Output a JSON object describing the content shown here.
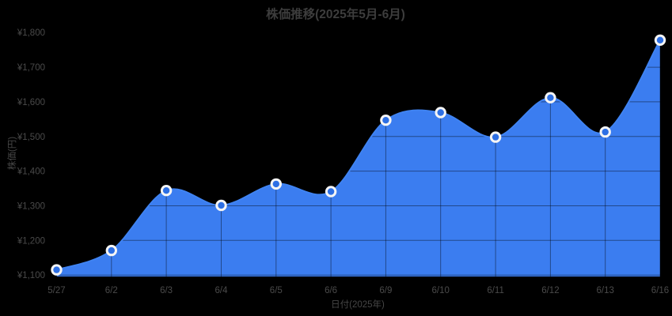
{
  "chart_data": {
    "type": "area",
    "title": "株価推移(2025年5月-6月)",
    "xlabel": "日付(2025年)",
    "ylabel": "株価(円)",
    "series_name": "株価",
    "categories": [
      "5/27",
      "6/2",
      "6/3",
      "6/4",
      "6/5",
      "6/6",
      "6/9",
      "6/10",
      "6/11",
      "6/12",
      "6/13",
      "6/16"
    ],
    "values": [
      1115,
      1171,
      1344,
      1301,
      1363,
      1341,
      1547,
      1569,
      1498,
      1612,
      1513,
      1778
    ],
    "y_ticks": [
      1100,
      1200,
      1300,
      1400,
      1500,
      1600,
      1700,
      1800
    ],
    "y_tick_labels": [
      "¥1,100",
      "¥1,200",
      "¥1,300",
      "¥1,400",
      "¥1,500",
      "¥1,600",
      "¥1,700",
      "¥1,800"
    ],
    "ylim": [
      1096,
      1800
    ],
    "grid": true,
    "legend": false,
    "curve": "smooth-spline",
    "colors": {
      "background": "#000000",
      "area_fill": "#3b7df0",
      "line": "#3f83f2",
      "point_inner": "#2d6fe4",
      "point_ring": "#f5f5f5",
      "gridline": "rgba(0,0,0,0.42)",
      "text": "#4a4a4a",
      "title_text": "#3d3d3d"
    }
  }
}
